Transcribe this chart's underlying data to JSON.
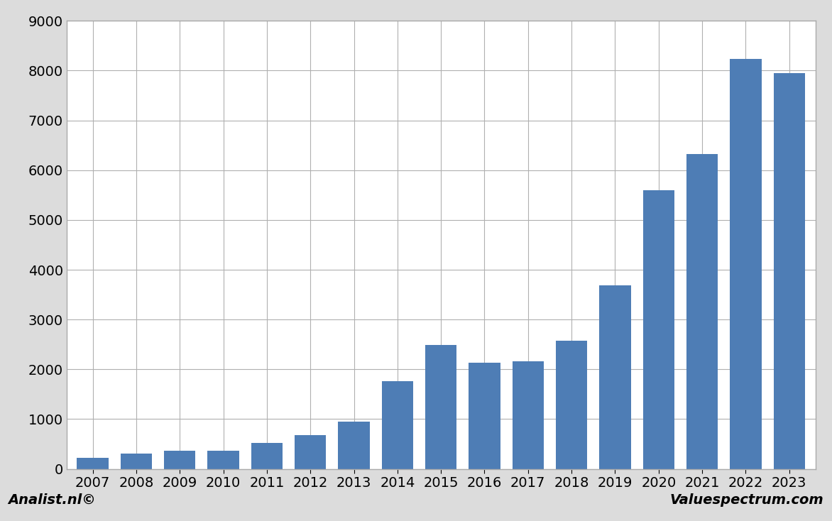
{
  "categories": [
    "2007",
    "2008",
    "2009",
    "2010",
    "2011",
    "2012",
    "2013",
    "2014",
    "2015",
    "2016",
    "2017",
    "2018",
    "2019",
    "2020",
    "2021",
    "2022",
    "2023"
  ],
  "values": [
    220,
    310,
    370,
    360,
    520,
    680,
    950,
    1760,
    2490,
    2140,
    2160,
    2580,
    3680,
    5600,
    6320,
    8230,
    7950
  ],
  "bar_color": "#4e7db5",
  "ylim": [
    0,
    9000
  ],
  "yticks": [
    0,
    1000,
    2000,
    3000,
    4000,
    5000,
    6000,
    7000,
    8000,
    9000
  ],
  "plot_bg_color": "#ffffff",
  "fig_bg_color": "#dcdcdc",
  "footer_bg_color": "#dcdcdc",
  "grid_color": "#b0b0b0",
  "spine_color": "#aaaaaa",
  "footer_left": "Analist.nl©",
  "footer_right": "Valuespectrum.com",
  "footer_fontsize": 14,
  "tick_fontsize": 14,
  "bar_width": 0.72
}
